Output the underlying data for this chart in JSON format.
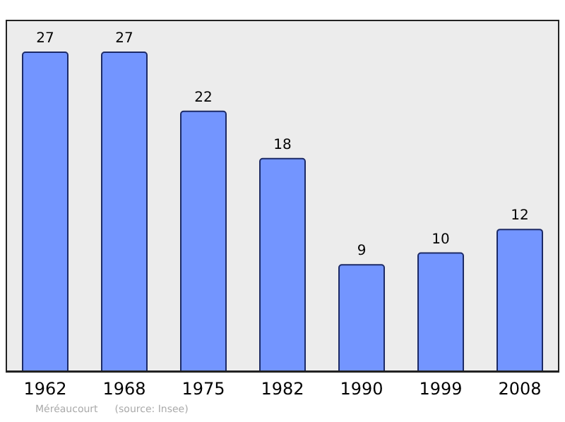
{
  "chart_data": {
    "type": "bar",
    "categories": [
      "1962",
      "1968",
      "1975",
      "1982",
      "1990",
      "1999",
      "2008"
    ],
    "values": [
      27,
      27,
      22,
      18,
      9,
      10,
      12
    ],
    "color": "#7395ff",
    "ylim": [
      0,
      29.75
    ],
    "tick_labels": "x",
    "data_labels": true,
    "grid": false,
    "annotations": [
      "Méréaucourt",
      "(source: Insee)"
    ]
  }
}
